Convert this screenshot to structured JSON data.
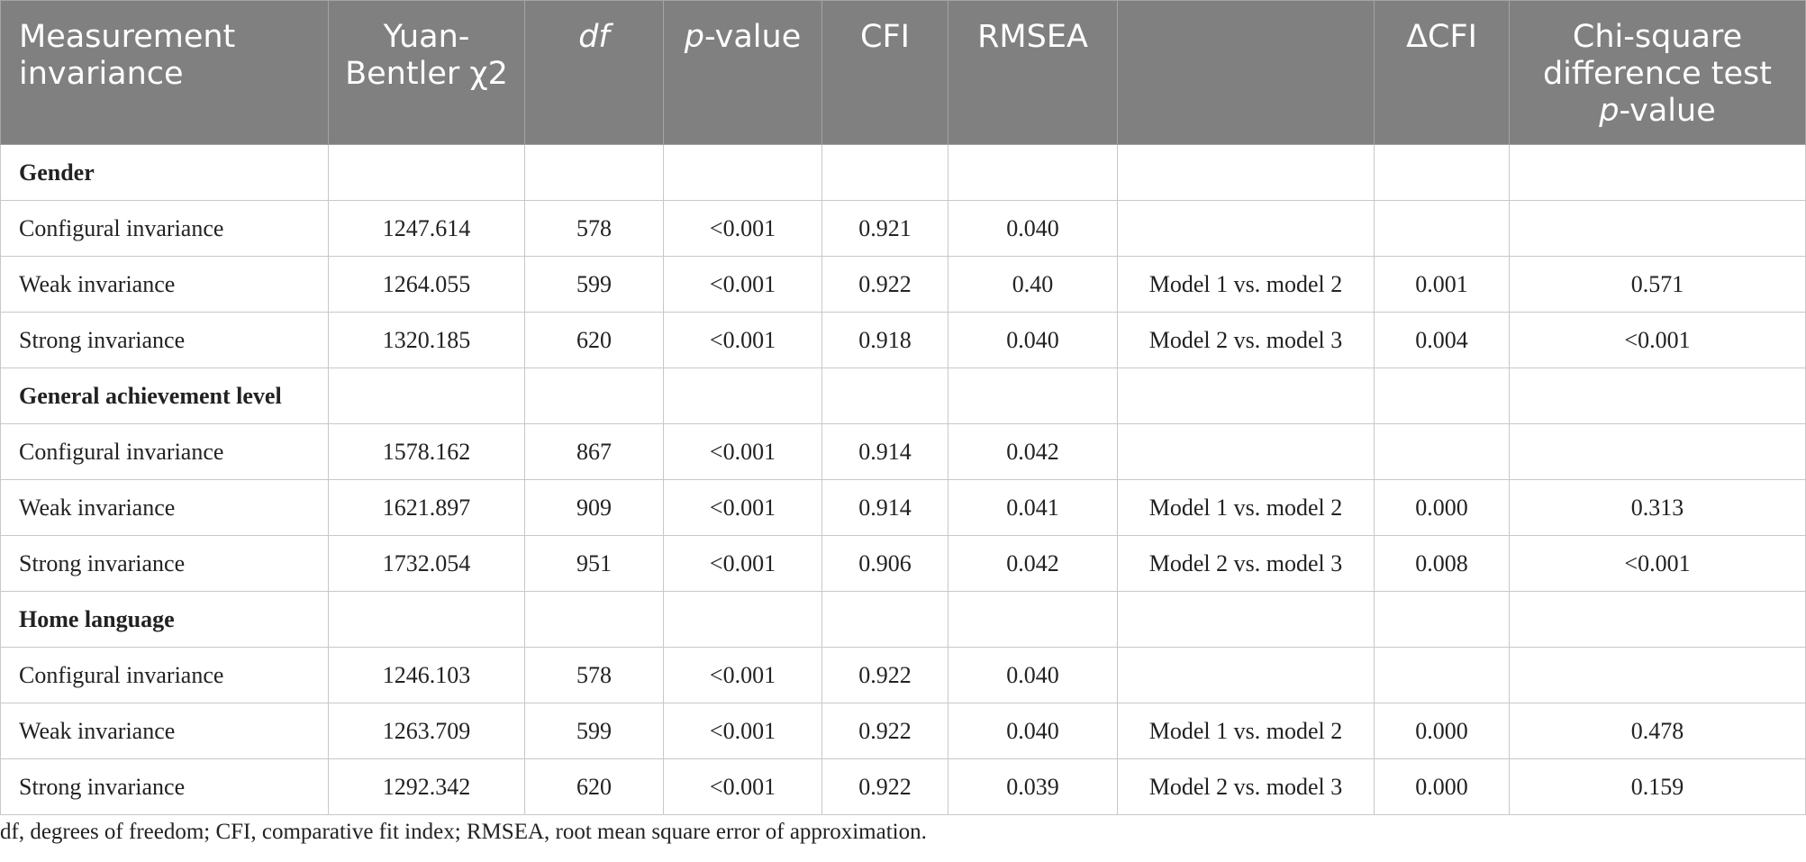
{
  "header": {
    "measurement": "Measurement invariance",
    "yb_line1": "Yuan-",
    "yb_line2": "Bentler χ2",
    "df": "df",
    "p_italic": "p",
    "p_rest": "-value",
    "cfi": "CFI",
    "rmsea": "RMSEA",
    "comparison": "",
    "delta_cfi": "ΔCFI",
    "chisq_line1": "Chi-square",
    "chisq_line2": "difference test",
    "chisq_p_italic": "p",
    "chisq_p_rest": "-value"
  },
  "groups": [
    {
      "title": "Gender",
      "rows": [
        {
          "label": "Configural invariance",
          "chi2": "1247.614",
          "df": "578",
          "p": "<0.001",
          "cfi": "0.921",
          "rmsea": "0.040",
          "comparison": "",
          "dcfi": "",
          "chisq_p": ""
        },
        {
          "label": "Weak invariance",
          "chi2": "1264.055",
          "df": "599",
          "p": "<0.001",
          "cfi": "0.922",
          "rmsea": "0.40",
          "comparison": "Model 1 vs. model 2",
          "dcfi": "0.001",
          "chisq_p": "0.571"
        },
        {
          "label": "Strong invariance",
          "chi2": "1320.185",
          "df": "620",
          "p": "<0.001",
          "cfi": "0.918",
          "rmsea": "0.040",
          "comparison": "Model 2 vs. model 3",
          "dcfi": "0.004",
          "chisq_p": "<0.001"
        }
      ]
    },
    {
      "title": "General achievement level",
      "rows": [
        {
          "label": "Configural invariance",
          "chi2": "1578.162",
          "df": "867",
          "p": "<0.001",
          "cfi": "0.914",
          "rmsea": "0.042",
          "comparison": "",
          "dcfi": "",
          "chisq_p": ""
        },
        {
          "label": "Weak invariance",
          "chi2": "1621.897",
          "df": "909",
          "p": "<0.001",
          "cfi": "0.914",
          "rmsea": "0.041",
          "comparison": "Model 1 vs. model 2",
          "dcfi": "0.000",
          "chisq_p": "0.313"
        },
        {
          "label": "Strong invariance",
          "chi2": "1732.054",
          "df": "951",
          "p": "<0.001",
          "cfi": "0.906",
          "rmsea": "0.042",
          "comparison": "Model 2 vs. model 3",
          "dcfi": "0.008",
          "chisq_p": "<0.001"
        }
      ]
    },
    {
      "title": "Home language",
      "rows": [
        {
          "label": "Configural invariance",
          "chi2": "1246.103",
          "df": "578",
          "p": "<0.001",
          "cfi": "0.922",
          "rmsea": "0.040",
          "comparison": "",
          "dcfi": "",
          "chisq_p": ""
        },
        {
          "label": "Weak invariance",
          "chi2": "1263.709",
          "df": "599",
          "p": "<0.001",
          "cfi": "0.922",
          "rmsea": "0.040",
          "comparison": "Model 1 vs. model 2",
          "dcfi": "0.000",
          "chisq_p": "0.478"
        },
        {
          "label": "Strong invariance",
          "chi2": "1292.342",
          "df": "620",
          "p": "<0.001",
          "cfi": "0.922",
          "rmsea": "0.039",
          "comparison": "Model 2 vs. model 3",
          "dcfi": "0.000",
          "chisq_p": "0.159"
        }
      ]
    }
  ],
  "footnote": "df, degrees of freedom; CFI, comparative fit index; RMSEA, root mean square error of approximation.",
  "colors": {
    "header_bg": "#808080",
    "header_text": "#ffffff",
    "grid": "#c8c8c8"
  }
}
